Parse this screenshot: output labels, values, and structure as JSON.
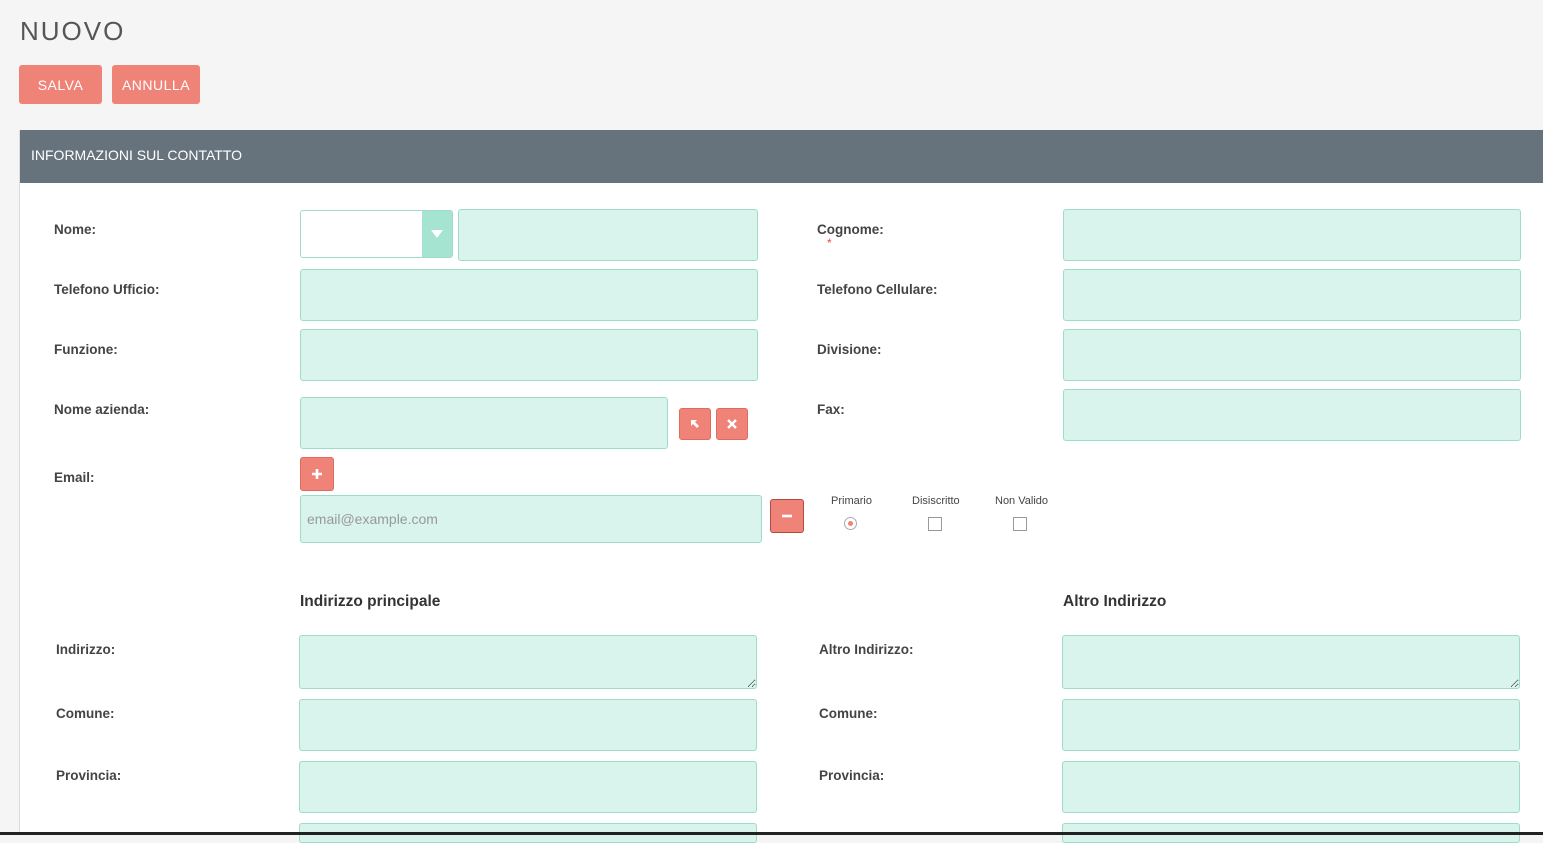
{
  "page_title": "NUOVO",
  "toolbar": {
    "save_label": "SALVA",
    "cancel_label": "ANNULLA"
  },
  "panel": {
    "header": "INFORMAZIONI SUL CONTATTO"
  },
  "labels": {
    "nome": "Nome:",
    "cognome": "Cognome:",
    "telefono_ufficio": "Telefono Ufficio:",
    "telefono_cellulare": "Telefono Cellulare:",
    "funzione": "Funzione:",
    "divisione": "Divisione:",
    "nome_azienda": "Nome azienda:",
    "fax": "Fax:",
    "email": "Email:",
    "required_mark": "*"
  },
  "email": {
    "placeholder": "email@example.com",
    "options": {
      "primary": "Primario",
      "opted_out": "Disiscritto",
      "invalid": "Non Valido"
    }
  },
  "sections": {
    "primary_address": "Indirizzo principale",
    "other_address": "Altro Indirizzo"
  },
  "address_labels": {
    "indirizzo": "Indirizzo:",
    "altro_indirizzo": "Altro Indirizzo:",
    "comune": "Comune:",
    "provincia": "Provincia:"
  },
  "icons": {
    "select": "arrow-icon",
    "clear": "times-icon",
    "add": "plus-icon",
    "remove": "minus-icon"
  },
  "colors": {
    "accent": "#f08377",
    "header": "#67737c",
    "field": "#d8f4ec"
  }
}
